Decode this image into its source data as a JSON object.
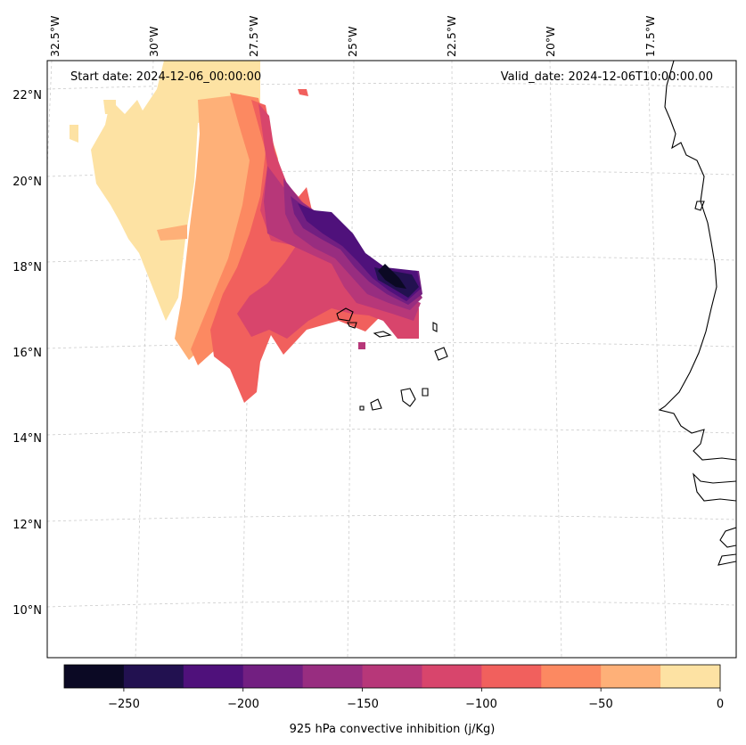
{
  "header": {
    "start_date": "Start date: 2024-12-06_00:00:00",
    "valid_date": "Valid_date: 2024-12-06T10:00:00.00"
  },
  "lon_labels": [
    "32.5°W",
    "30°W",
    "27.5°W",
    "25°W",
    "22.5°W",
    "20°W",
    "17.5°W"
  ],
  "lat_labels": [
    "22°N",
    "20°N",
    "18°N",
    "16°N",
    "14°N",
    "12°N",
    "10°N"
  ],
  "colorbar": {
    "label": "925 hPa convective inhibition (j/Kg)",
    "tick_labels": [
      "−250",
      "−200",
      "−150",
      "−100",
      "−50",
      "0"
    ],
    "levels": [
      -275,
      -250,
      -225,
      -200,
      -175,
      -150,
      -125,
      -100,
      -75,
      -50,
      -25,
      0
    ],
    "colors": [
      "#0b0924",
      "#221150",
      "#4f117b",
      "#721f81",
      "#982d80",
      "#b73779",
      "#d8456c",
      "#f1605d",
      "#fc8961",
      "#feb078",
      "#fde2a3"
    ]
  },
  "map": {
    "projection": "conic",
    "coastline_color": "#000000",
    "gridline_color": "#cccccc",
    "cin_region": "Atlantic Ocean west of Cabo Verde, roughly 15–23°N, 23–32°W"
  }
}
